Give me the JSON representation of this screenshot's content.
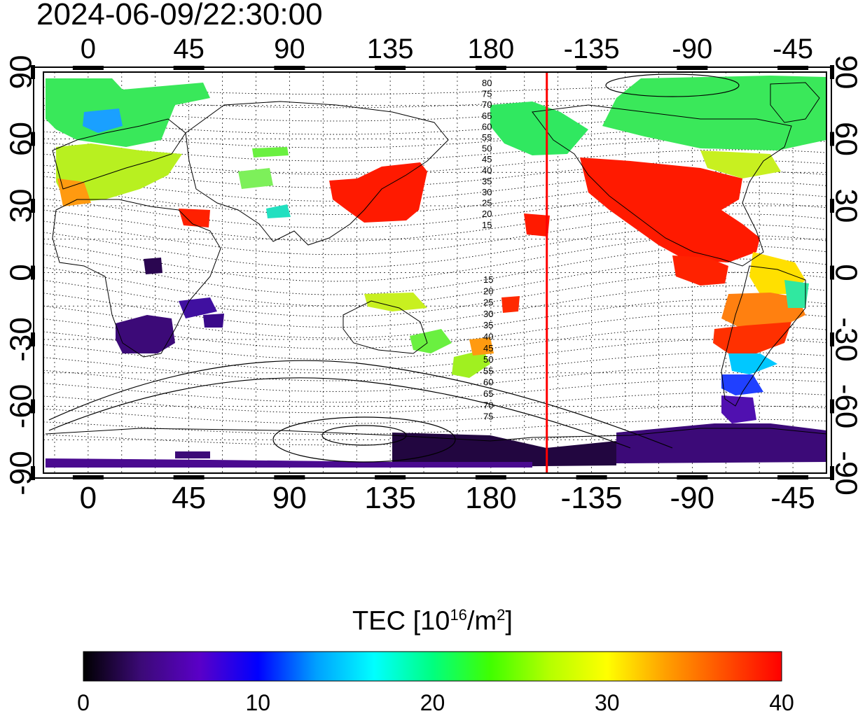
{
  "header": {
    "timestamp": "2024-06-09/22:30:00"
  },
  "map": {
    "type": "TEC global map",
    "lon_ticks": [
      "0",
      "45",
      "90",
      "135",
      "180",
      "-135",
      "-90",
      "-45"
    ],
    "lat_ticks": [
      "90",
      "60",
      "30",
      "0",
      "-30",
      "-60",
      "-90"
    ],
    "lon_range": [
      -20,
      330
    ],
    "lat_range": [
      -90,
      90
    ],
    "grid": true,
    "contour_labels_north": [
      "80",
      "75",
      "70",
      "65",
      "60",
      "55",
      "50",
      "45",
      "40",
      "35",
      "30",
      "25",
      "20",
      "15"
    ],
    "contour_labels_south": [
      "15",
      "20",
      "25",
      "30",
      "35",
      "40",
      "45",
      "50",
      "55",
      "60",
      "65",
      "70",
      "75"
    ],
    "terminator_marker_lon": -155,
    "terminator_color": "#ff0000"
  },
  "colorbar": {
    "title": "TEC  [10",
    "title_exp": "16",
    "title_unit": "/m",
    "title_unit_exp": "2",
    "title_close": "]",
    "tick_labels": [
      "0",
      "10",
      "20",
      "30",
      "40"
    ],
    "range": [
      0,
      40
    ],
    "stops": [
      "#000000",
      "#3c0a78",
      "#5a00c8",
      "#0000ff",
      "#00a0ff",
      "#00ffff",
      "#00ff80",
      "#40ff00",
      "#b4ff00",
      "#ffff00",
      "#ffa000",
      "#ff5000",
      "#ff0000"
    ]
  }
}
